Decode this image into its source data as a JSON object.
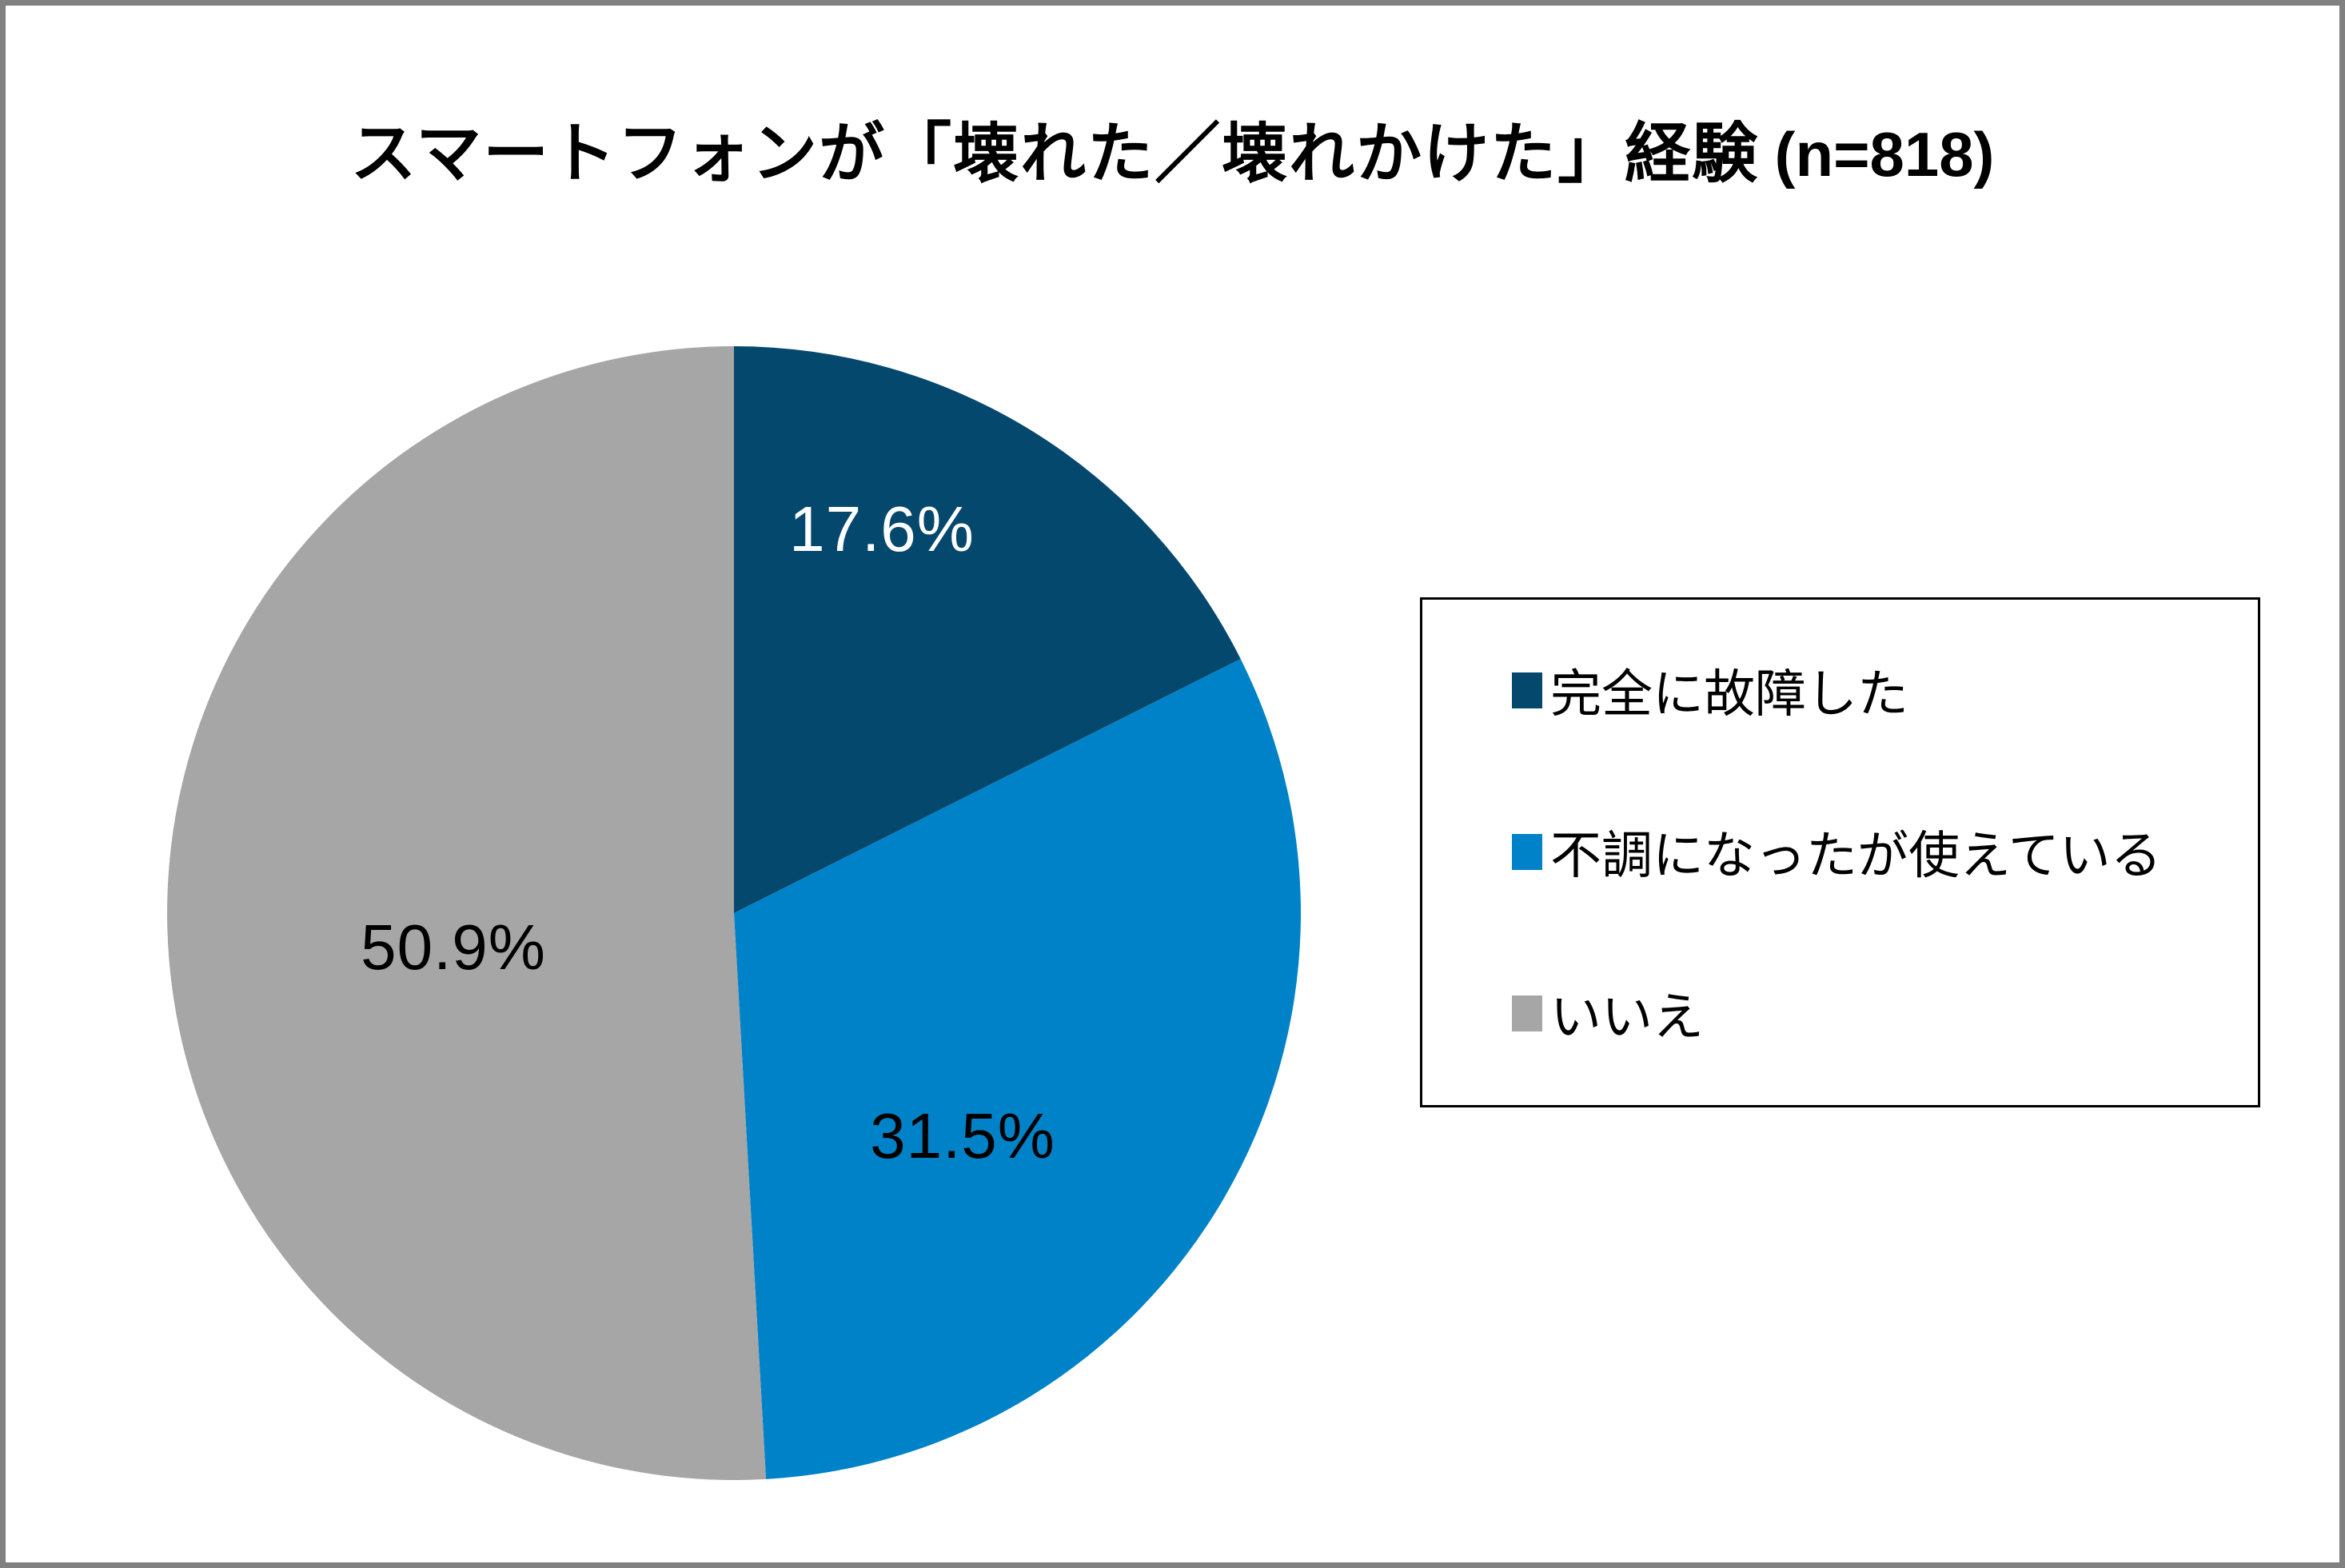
{
  "title": {
    "main": "スマートフォンが「壊れた／壊れかけた」経験",
    "suffix": "(n=818)"
  },
  "sample_size": "n=818",
  "colors": {
    "background": "#FFFFFF",
    "page_border": "#808080",
    "legend_border": "#000000",
    "title_text": "#000000"
  },
  "chart_data": {
    "type": "pie",
    "title": "スマートフォンが「壊れた／壊れかけた」経験 (n=818)",
    "n": 818,
    "start_angle_deg": 0,
    "direction": "clockwise",
    "legend_position": "right",
    "slices": [
      {
        "name": "完全に故障した",
        "value": 17.6,
        "label": "17.6%",
        "color": "#05486E",
        "label_color": "#FFFFFF"
      },
      {
        "name": "不調になったが使えている",
        "value": 31.5,
        "label": "31.5%",
        "color": "#0082C8",
        "label_color": "#000000"
      },
      {
        "name": "いいえ",
        "value": 50.9,
        "label": "50.9%",
        "color": "#A6A6A6",
        "label_color": "#000000"
      }
    ]
  }
}
